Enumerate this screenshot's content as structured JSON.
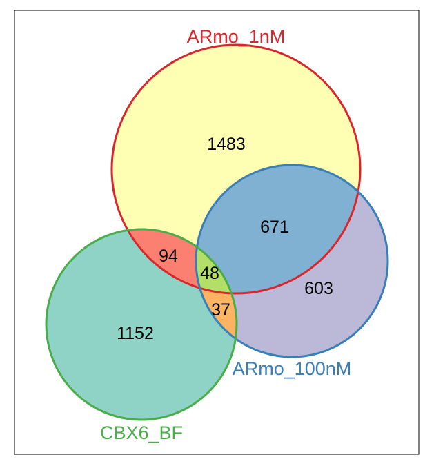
{
  "chart_data": {
    "type": "venn",
    "sets": [
      {
        "key": "a",
        "name": "ARmo_1nM",
        "color": "#d9262b",
        "fill": "#ffffb3"
      },
      {
        "key": "b",
        "name": "ARmo_100nM",
        "color": "#3a7eb8",
        "fill": "#bcb8d8"
      },
      {
        "key": "c",
        "name": "CBX6_BF",
        "color": "#4aad4a",
        "fill": "#8ed3c6"
      }
    ],
    "regions": [
      {
        "sets": [
          "ARmo_1nM"
        ],
        "value": "1483",
        "fill": "#ffffb3"
      },
      {
        "sets": [
          "ARmo_100nM"
        ],
        "value": "603",
        "fill": "#bcb8d8"
      },
      {
        "sets": [
          "CBX6_BF"
        ],
        "value": "1152",
        "fill": "#8ed3c6"
      },
      {
        "sets": [
          "ARmo_1nM",
          "ARmo_100nM"
        ],
        "value": "671",
        "fill": "#80b1d3"
      },
      {
        "sets": [
          "ARmo_1nM",
          "CBX6_BF"
        ],
        "value": "94",
        "fill": "#fb8072"
      },
      {
        "sets": [
          "ARmo_100nM",
          "CBX6_BF"
        ],
        "value": "37",
        "fill": "#fdb462"
      },
      {
        "sets": [
          "ARmo_1nM",
          "ARmo_100nM",
          "CBX6_BF"
        ],
        "value": "48",
        "fill": "#b3de69"
      }
    ]
  }
}
